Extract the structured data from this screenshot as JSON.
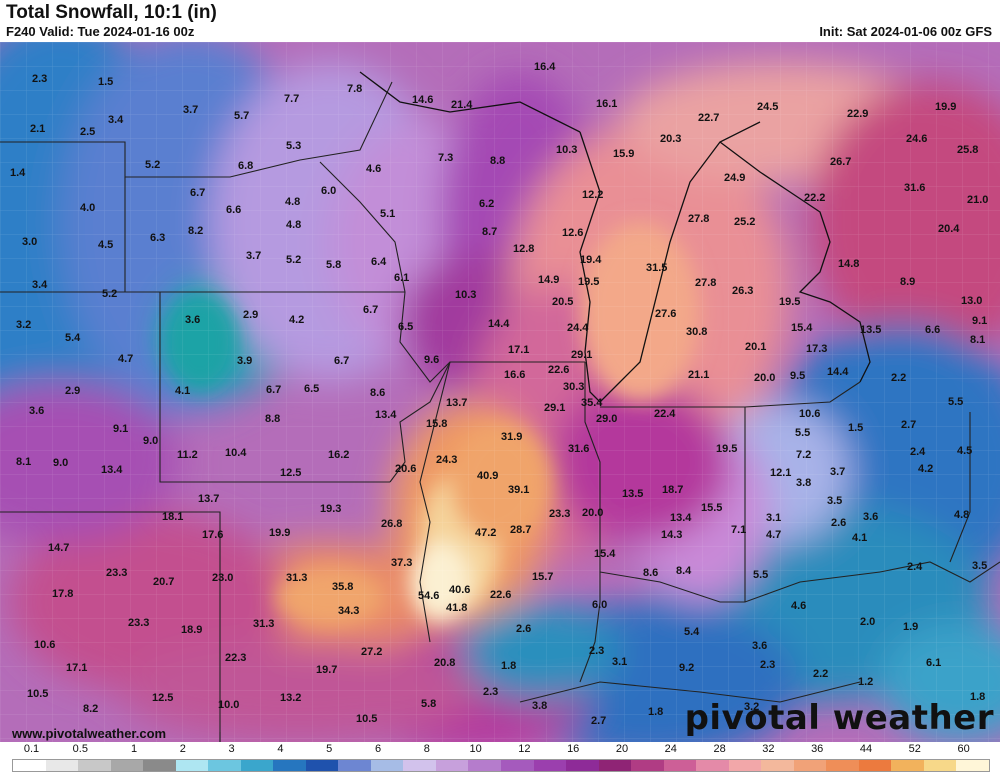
{
  "header": {
    "title": "Total Snowfall, 10:1 (in)",
    "valid": "F240 Valid: Tue 2024-01-16 00z",
    "init": "Init: Sat 2024-01-06 00z GFS"
  },
  "footer": {
    "url": "www.pivotalweather.com",
    "brand": "pivotal weather"
  },
  "legend": {
    "labels": [
      "0.1",
      "0.5",
      "1",
      "2",
      "3",
      "4",
      "5",
      "6",
      "8",
      "10",
      "12",
      "16",
      "20",
      "24",
      "28",
      "32",
      "36",
      "44",
      "52",
      "60"
    ],
    "colors": [
      "#ffffff",
      "#e8e8e8",
      "#c8c8c8",
      "#a8a8a8",
      "#8a8a8a",
      "#aee6f2",
      "#6cc6e0",
      "#3aa6cc",
      "#2676bf",
      "#1f52ad",
      "#6d86d2",
      "#a6bce6",
      "#d2c2ec",
      "#c7a0dc",
      "#b57ccc",
      "#a55abd",
      "#9b3fae",
      "#8e2b98",
      "#8f2475",
      "#b03c84",
      "#cd5f97",
      "#e48aa8",
      "#f2a7a9",
      "#f3b89c",
      "#f1a278",
      "#ef8e58",
      "#ec7a3e",
      "#f2b25c",
      "#f7d889",
      "#fff6d8"
    ]
  },
  "map_values": [
    {
      "v": "2.3"
    },
    {
      "v": "1.5"
    },
    {
      "v": "2.1"
    },
    {
      "v": "2.5"
    },
    {
      "v": "3.4"
    },
    {
      "v": "3.7"
    },
    {
      "v": "5.7"
    },
    {
      "v": "7.7"
    },
    {
      "v": "7.8"
    },
    {
      "v": "14.6"
    },
    {
      "v": "21.4"
    },
    {
      "v": "16.4"
    },
    {
      "v": "16.1"
    },
    {
      "v": "22.7"
    },
    {
      "v": "24.5"
    },
    {
      "v": "22.9"
    },
    {
      "v": "19.9"
    },
    {
      "v": "1.4"
    },
    {
      "v": "5.2"
    },
    {
      "v": "6.8"
    },
    {
      "v": "5.3"
    },
    {
      "v": "4.6"
    },
    {
      "v": "7.3"
    },
    {
      "v": "8.8"
    },
    {
      "v": "10.3"
    },
    {
      "v": "15.9"
    },
    {
      "v": "20.3"
    },
    {
      "v": "26.7"
    },
    {
      "v": "24.6"
    },
    {
      "v": "25.8"
    },
    {
      "v": "4.0"
    },
    {
      "v": "6.7"
    },
    {
      "v": "6.6"
    },
    {
      "v": "4.8"
    },
    {
      "v": "6.0"
    },
    {
      "v": "5.1"
    },
    {
      "v": "6.2"
    },
    {
      "v": "12.2"
    },
    {
      "v": "24.9"
    },
    {
      "v": "22.2"
    },
    {
      "v": "31.6"
    },
    {
      "v": "21.0"
    },
    {
      "v": "3.0"
    },
    {
      "v": "4.5"
    },
    {
      "v": "6.3"
    },
    {
      "v": "8.2"
    },
    {
      "v": "4.8"
    },
    {
      "v": "8.7"
    },
    {
      "v": "12.6"
    },
    {
      "v": "27.8"
    },
    {
      "v": "25.2"
    },
    {
      "v": "20.4"
    },
    {
      "v": "3.4"
    },
    {
      "v": "3.7"
    },
    {
      "v": "5.2"
    },
    {
      "v": "5.8"
    },
    {
      "v": "6.4"
    },
    {
      "v": "6.1"
    },
    {
      "v": "12.8"
    },
    {
      "v": "19.4"
    },
    {
      "v": "31.5"
    },
    {
      "v": "14.8"
    },
    {
      "v": "5.2"
    },
    {
      "v": "3.6"
    },
    {
      "v": "2.9"
    },
    {
      "v": "4.2"
    },
    {
      "v": "6.7"
    },
    {
      "v": "10.3"
    },
    {
      "v": "14.9"
    },
    {
      "v": "19.5"
    },
    {
      "v": "27.8"
    },
    {
      "v": "26.3"
    },
    {
      "v": "8.9"
    },
    {
      "v": "3.2"
    },
    {
      "v": "5.4"
    },
    {
      "v": "6.5"
    },
    {
      "v": "14.4"
    },
    {
      "v": "20.5"
    },
    {
      "v": "24.4"
    },
    {
      "v": "27.6"
    },
    {
      "v": "30.8"
    },
    {
      "v": "19.5"
    },
    {
      "v": "15.4"
    },
    {
      "v": "13.5"
    },
    {
      "v": "13.0"
    },
    {
      "v": "6.6"
    },
    {
      "v": "9.1"
    },
    {
      "v": "8.1"
    },
    {
      "v": "4.7"
    },
    {
      "v": "3.9"
    },
    {
      "v": "6.7"
    },
    {
      "v": "9.6"
    },
    {
      "v": "17.1"
    },
    {
      "v": "29.1"
    },
    {
      "v": "20.1"
    },
    {
      "v": "17.3"
    },
    {
      "v": "2.9"
    },
    {
      "v": "4.1"
    },
    {
      "v": "6.7"
    },
    {
      "v": "6.5"
    },
    {
      "v": "8.6"
    },
    {
      "v": "16.6"
    },
    {
      "v": "22.6"
    },
    {
      "v": "30.3"
    },
    {
      "v": "21.1"
    },
    {
      "v": "20.0"
    },
    {
      "v": "9.5"
    },
    {
      "v": "14.4"
    },
    {
      "v": "2.2"
    },
    {
      "v": "3.6"
    },
    {
      "v": "8.8"
    },
    {
      "v": "13.4"
    },
    {
      "v": "13.7"
    },
    {
      "v": "35.4"
    },
    {
      "v": "29.1"
    },
    {
      "v": "29.0"
    },
    {
      "v": "22.4"
    },
    {
      "v": "10.6"
    },
    {
      "v": "5.5"
    },
    {
      "v": "9.1"
    },
    {
      "v": "15.8"
    },
    {
      "v": "5.5"
    },
    {
      "v": "1.5"
    },
    {
      "v": "2.7"
    },
    {
      "v": "9.0"
    },
    {
      "v": "11.2"
    },
    {
      "v": "10.4"
    },
    {
      "v": "31.9"
    },
    {
      "v": "31.6"
    },
    {
      "v": "19.5"
    },
    {
      "v": "7.2"
    },
    {
      "v": "2.4"
    },
    {
      "v": "4.5"
    },
    {
      "v": "8.1"
    },
    {
      "v": "9.0"
    },
    {
      "v": "13.4"
    },
    {
      "v": "16.2"
    },
    {
      "v": "12.5"
    },
    {
      "v": "20.6"
    },
    {
      "v": "24.3"
    },
    {
      "v": "12.1"
    },
    {
      "v": "3.7"
    },
    {
      "v": "4.2"
    },
    {
      "v": "40.9"
    },
    {
      "v": "39.1"
    },
    {
      "v": "3.8"
    },
    {
      "v": "13.7"
    },
    {
      "v": "13.5"
    },
    {
      "v": "18.7"
    },
    {
      "v": "3.5"
    },
    {
      "v": "19.3"
    },
    {
      "v": "18.1"
    },
    {
      "v": "23.3"
    },
    {
      "v": "20.0"
    },
    {
      "v": "15.5"
    },
    {
      "v": "13.4"
    },
    {
      "v": "3.1"
    },
    {
      "v": "2.6"
    },
    {
      "v": "3.6"
    },
    {
      "v": "4.8"
    },
    {
      "v": "26.8"
    },
    {
      "v": "17.6"
    },
    {
      "v": "19.9"
    },
    {
      "v": "47.2"
    },
    {
      "v": "28.7"
    },
    {
      "v": "14.3"
    },
    {
      "v": "7.1"
    },
    {
      "v": "4.7"
    },
    {
      "v": "4.1"
    },
    {
      "v": "14.7"
    },
    {
      "v": "37.3"
    },
    {
      "v": "15.4"
    },
    {
      "v": "23.3"
    },
    {
      "v": "20.7"
    },
    {
      "v": "23.0"
    },
    {
      "v": "31.3"
    },
    {
      "v": "35.8"
    },
    {
      "v": "8.6"
    },
    {
      "v": "8.4"
    },
    {
      "v": "5.5"
    },
    {
      "v": "2.4"
    },
    {
      "v": "3.5"
    },
    {
      "v": "17.8"
    },
    {
      "v": "54.6"
    },
    {
      "v": "40.6"
    },
    {
      "v": "15.7"
    },
    {
      "v": "22.6"
    },
    {
      "v": "6.0"
    },
    {
      "v": "4.6"
    },
    {
      "v": "34.3"
    },
    {
      "v": "41.8"
    },
    {
      "v": "23.3"
    },
    {
      "v": "18.9"
    },
    {
      "v": "31.3"
    },
    {
      "v": "2.6"
    },
    {
      "v": "5.4"
    },
    {
      "v": "2.0"
    },
    {
      "v": "1.9"
    },
    {
      "v": "10.6"
    },
    {
      "v": "27.2"
    },
    {
      "v": "3.6"
    },
    {
      "v": "22.3"
    },
    {
      "v": "20.8"
    },
    {
      "v": "2.3"
    },
    {
      "v": "3.1"
    },
    {
      "v": "2.3"
    },
    {
      "v": "6.1"
    },
    {
      "v": "17.1"
    },
    {
      "v": "19.7"
    },
    {
      "v": "1.8"
    },
    {
      "v": "9.2"
    },
    {
      "v": "2.2"
    },
    {
      "v": "1.2"
    },
    {
      "v": "10.5"
    },
    {
      "v": "12.5"
    },
    {
      "v": "13.2"
    },
    {
      "v": "2.3"
    },
    {
      "v": "1.8"
    },
    {
      "v": "8.2"
    },
    {
      "v": "10.0"
    },
    {
      "v": "5.8"
    },
    {
      "v": "3.8"
    },
    {
      "v": "1.8"
    },
    {
      "v": "3.2"
    },
    {
      "v": "10.5"
    },
    {
      "v": "2.7"
    }
  ]
}
